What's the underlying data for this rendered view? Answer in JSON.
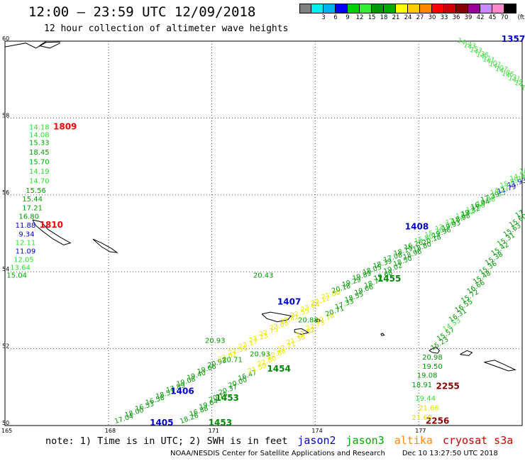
{
  "header": {
    "title": "12:00 – 23:59 UTC 12/09/2018",
    "subtitle": "12 hour collection of altimeter wave heights"
  },
  "legend": {
    "unit_label": "(ft)",
    "entries": [
      {
        "label": "",
        "color": "#808080"
      },
      {
        "label": "3",
        "color": "#00f0f0"
      },
      {
        "label": "6",
        "color": "#00b0f0"
      },
      {
        "label": "9",
        "color": "#0000ff"
      },
      {
        "label": "12",
        "color": "#00d000"
      },
      {
        "label": "15",
        "color": "#33ee33"
      },
      {
        "label": "18",
        "color": "#009900"
      },
      {
        "label": "21",
        "color": "#00aa00"
      },
      {
        "label": "24",
        "color": "#ffff00"
      },
      {
        "label": "27",
        "color": "#ffcc00"
      },
      {
        "label": "30",
        "color": "#ff8800"
      },
      {
        "label": "33",
        "color": "#ff0000"
      },
      {
        "label": "36",
        "color": "#cc0000"
      },
      {
        "label": "39",
        "color": "#880000"
      },
      {
        "label": "42",
        "color": "#990099"
      },
      {
        "label": "45",
        "color": "#cc88ff"
      },
      {
        "label": "70",
        "color": "#ff88cc"
      },
      {
        "label": "",
        "color": "#000000"
      }
    ]
  },
  "axes": {
    "lat_labels": [
      "60",
      "58",
      "56",
      "54",
      "52",
      "50"
    ],
    "lon_labels": [
      "165",
      "168",
      "171",
      "174",
      "177"
    ]
  },
  "map_labels": [
    {
      "t": "14.18",
      "c": "#33dd33",
      "lon": 165.7,
      "lat": 57.7
    },
    {
      "t": "1809",
      "c": "#ff0000",
      "lon": 166.4,
      "lat": 57.7,
      "b": 1
    },
    {
      "t": "14.08",
      "c": "#33dd33",
      "lon": 165.7,
      "lat": 57.5
    },
    {
      "t": "15.33",
      "c": "#00aa00",
      "lon": 165.7,
      "lat": 57.3
    },
    {
      "t": "18.45",
      "c": "#009900",
      "lon": 165.7,
      "lat": 57.05
    },
    {
      "t": "15.70",
      "c": "#00aa00",
      "lon": 165.7,
      "lat": 56.8
    },
    {
      "t": "14.19",
      "c": "#33dd33",
      "lon": 165.7,
      "lat": 56.55
    },
    {
      "t": "14.70",
      "c": "#33dd33",
      "lon": 165.7,
      "lat": 56.3
    },
    {
      "t": "15.56",
      "c": "#00aa00",
      "lon": 165.6,
      "lat": 56.05
    },
    {
      "t": "15.44",
      "c": "#00aa00",
      "lon": 165.5,
      "lat": 55.83
    },
    {
      "t": "17.21",
      "c": "#009900",
      "lon": 165.5,
      "lat": 55.6
    },
    {
      "t": "16.80",
      "c": "#009900",
      "lon": 165.4,
      "lat": 55.38
    },
    {
      "t": "11.88",
      "c": "#0000cc",
      "lon": 165.3,
      "lat": 55.15
    },
    {
      "t": "1810",
      "c": "#ff0000",
      "lon": 166.0,
      "lat": 55.15,
      "b": 1
    },
    {
      "t": "9.34",
      "c": "#0000cc",
      "lon": 165.4,
      "lat": 54.92
    },
    {
      "t": "12.11",
      "c": "#33dd33",
      "lon": 165.3,
      "lat": 54.7
    },
    {
      "t": "11.09",
      "c": "#0000cc",
      "lon": 165.3,
      "lat": 54.47
    },
    {
      "t": "12.05",
      "c": "#33dd33",
      "lon": 165.25,
      "lat": 54.25
    },
    {
      "t": "13.64",
      "c": "#33dd33",
      "lon": 165.15,
      "lat": 54.05
    },
    {
      "t": "15.04",
      "c": "#00aa00",
      "lon": 165.05,
      "lat": 53.85
    },
    {
      "t": "1407",
      "c": "#0000cc",
      "lon": 172.9,
      "lat": 53.15,
      "b": 1
    },
    {
      "t": "1408",
      "c": "#0000cc",
      "lon": 176.6,
      "lat": 55.1,
      "b": 1
    },
    {
      "t": "1455",
      "c": "#008800",
      "lon": 175.8,
      "lat": 53.75,
      "b": 1
    },
    {
      "t": "1454",
      "c": "#008800",
      "lon": 172.6,
      "lat": 51.4,
      "b": 1
    },
    {
      "t": "1453",
      "c": "#008800",
      "lon": 171.1,
      "lat": 50.65,
      "b": 1
    },
    {
      "t": "1406",
      "c": "#0000cc",
      "lon": 169.8,
      "lat": 50.82,
      "b": 1
    },
    {
      "t": "1405",
      "c": "#0000cc",
      "lon": 169.2,
      "lat": 50.0,
      "b": 1
    },
    {
      "t": "1453",
      "c": "#008800",
      "lon": 170.9,
      "lat": 50.0,
      "b": 1
    },
    {
      "t": "2255",
      "c": "#880000",
      "lon": 177.5,
      "lat": 50.95,
      "b": 1
    },
    {
      "t": "2256",
      "c": "#880000",
      "lon": 177.2,
      "lat": 50.05,
      "b": 1
    },
    {
      "t": "1357",
      "c": "#0000cc",
      "lon": 179.4,
      "lat": 59.98,
      "b": 1
    },
    {
      "t": "20.43",
      "c": "#009900",
      "lon": 172.2,
      "lat": 53.85
    },
    {
      "t": "20.88",
      "c": "#009900",
      "lon": 173.5,
      "lat": 52.68
    },
    {
      "t": "20.93",
      "c": "#009900",
      "lon": 170.8,
      "lat": 52.15
    },
    {
      "t": "20.93",
      "c": "#009900",
      "lon": 172.1,
      "lat": 51.8
    },
    {
      "t": "20.71",
      "c": "#009900",
      "lon": 171.3,
      "lat": 51.65
    },
    {
      "t": "20.98",
      "c": "#009900",
      "lon": 177.1,
      "lat": 51.72
    },
    {
      "t": "19.50",
      "c": "#009900",
      "lon": 177.1,
      "lat": 51.48
    },
    {
      "t": "19.08",
      "c": "#009900",
      "lon": 176.95,
      "lat": 51.25
    },
    {
      "t": "18.91",
      "c": "#009900",
      "lon": 176.8,
      "lat": 51.0
    },
    {
      "t": "19.44",
      "c": "#33dd33",
      "lon": 176.9,
      "lat": 50.65
    },
    {
      "t": "21.66",
      "c": "#dddd00",
      "lon": 177.0,
      "lat": 50.4
    },
    {
      "t": "21.68",
      "c": "#dddd00",
      "lon": 176.8,
      "lat": 50.15
    }
  ],
  "tracks": [
    {
      "id": "pass-1406",
      "from": [
        168.2,
        50.05
      ],
      "to": [
        179.9,
        56.35
      ],
      "vals": [
        "17.04",
        "18.00",
        "16.53",
        "16.58",
        "18.51",
        "17.89",
        "19.08",
        "19.40",
        "19.66",
        "20.93",
        "22.02",
        "22.51",
        "23.17",
        "23.23",
        "22.75",
        "23.00",
        "22.42",
        "22.55",
        "23.64",
        "23.12",
        "21.80",
        "20.18",
        "19.29",
        "19.89",
        "18.05",
        "18.39",
        "17.08",
        "18.19",
        "16.26",
        "15.80",
        "15.20",
        "13.34",
        "13.84",
        "13.42",
        "13.06",
        "12.98",
        "12.55",
        "11.79",
        "11.93",
        "14.4"
      ],
      "cols": [
        "g",
        "g",
        "g",
        "g",
        "g",
        "g",
        "g",
        "g",
        "g",
        "g",
        "y",
        "y",
        "y",
        "y",
        "y",
        "y",
        "y",
        "y",
        "y",
        "y",
        "y",
        "g",
        "g",
        "g",
        "g",
        "g",
        "g",
        "g",
        "g",
        "l",
        "l",
        "l",
        "l",
        "l",
        "l",
        "l",
        "l",
        "b",
        "b",
        "l"
      ]
    },
    {
      "id": "pass-1455",
      "from": [
        170.1,
        50.05
      ],
      "to": [
        179.95,
        56.55
      ],
      "vals": [
        "18.26",
        "16.88",
        "19.64",
        "20.15",
        "20.37",
        "20.00",
        "16.47",
        "21.59",
        "22.80",
        "22.86",
        "22.21",
        "21.36",
        "22.52",
        "22.73",
        "22.18",
        "20.71",
        "17.33",
        "18.55",
        "19.66",
        "18.74",
        "19.68",
        "19.02",
        "18.50",
        "18.96",
        "18.80",
        "20.18",
        "19.96",
        "19.93",
        "18.98",
        "19.32",
        "16.94",
        "17.39",
        "14.52",
        "15.89",
        "14.50",
        "14.64"
      ],
      "cols": [
        "g",
        "g",
        "g",
        "g",
        "g",
        "g",
        "g",
        "y",
        "y",
        "y",
        "y",
        "y",
        "y",
        "y",
        "y",
        "g",
        "g",
        "g",
        "g",
        "g",
        "g",
        "g",
        "g",
        "g",
        "g",
        "g",
        "g",
        "g",
        "g",
        "g",
        "g",
        "g",
        "l",
        "l",
        "l",
        "l"
      ]
    },
    {
      "id": "pass-2255",
      "from": [
        177.4,
        51.95
      ],
      "to": [
        179.85,
        55.4
      ],
      "vals": [
        "15.23",
        "15.57",
        "14.53",
        "16.31",
        "16.55",
        "15.72",
        "16.66",
        "15.48",
        "15.36",
        "15.38",
        "15.42",
        "15.31",
        "15.63",
        "15.60",
        "17"
      ],
      "cols": [
        "g",
        "g",
        "l",
        "g",
        "g",
        "g",
        "g",
        "g",
        "g",
        "g",
        "g",
        "g",
        "g",
        "g",
        "g"
      ]
    },
    {
      "id": "pass-1357",
      "from": [
        178.1,
        59.98
      ],
      "to": [
        179.95,
        58.75
      ],
      "vals": [
        "14.43",
        "14.53",
        "14.36",
        "14.11",
        "14.01",
        "14.07",
        "14.86",
        "14.31",
        "14.5",
        "14.6",
        "14.3"
      ],
      "cols": [
        "l",
        "l",
        "l",
        "l",
        "l",
        "l",
        "l",
        "l",
        "l",
        "l",
        "l"
      ]
    }
  ],
  "footer": {
    "note": "note: 1) Time is in UTC; 2) SWH is in feet",
    "sats": [
      {
        "name": "jason2",
        "color": "#0000cc"
      },
      {
        "name": "jason3",
        "color": "#00aa00"
      },
      {
        "name": "altika",
        "color": "#ff8800"
      },
      {
        "name": "cryosat s3a",
        "color": "#cc0000"
      }
    ],
    "credit": "NOAA/NESDIS Center for Satellite Applications and Research",
    "stamp": "Dec 10 13:27:50 UTC 2018"
  }
}
